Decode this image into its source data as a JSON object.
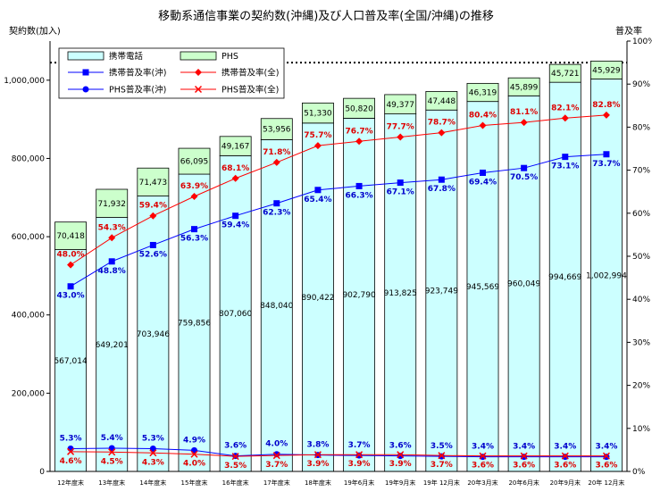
{
  "chart_data": {
    "type": "bar",
    "title": "移動系通信事業の契約数(沖縄)及び人口普及率(全国/沖縄)の推移",
    "ylabel": "契約数(加入)",
    "y2label": "普及率",
    "ylim": [
      0,
      1100000
    ],
    "y2lim": [
      0,
      100
    ],
    "yticks": [
      "0",
      "200,000",
      "400,000",
      "600,000",
      "800,000",
      "1,000,000"
    ],
    "y2ticks": [
      "0%",
      "10%",
      "20%",
      "30%",
      "40%",
      "50%",
      "60%",
      "70%",
      "80%",
      "90%",
      "100%"
    ],
    "categories": [
      "12年度末",
      "13年度末",
      "14年度末",
      "15年度末",
      "16年度末",
      "17年度末",
      "18年度末",
      "19年6月末",
      "19年9月末",
      "19年 12月末",
      "20年3月末",
      "20年6月末",
      "20年9月末",
      "20年 12月末"
    ],
    "grid": false,
    "stacked_bars": [
      {
        "name": "携帯電話",
        "color": "#ccffff",
        "values": [
          567014,
          649201,
          703946,
          759856,
          807060,
          848040,
          890422,
          902790,
          913825,
          923749,
          945569,
          960049,
          994669,
          1002994
        ],
        "labels": [
          "567,014",
          "649,201",
          "703,946",
          "759,856",
          "807,060",
          "848,040",
          "890,422",
          "902,790",
          "913,825",
          "923,749",
          "945,569",
          "960,049",
          "994,669",
          "1,002,994"
        ]
      },
      {
        "name": "PHS",
        "color": "#ccffcc",
        "values": [
          70418,
          71932,
          71473,
          66095,
          49167,
          53956,
          51330,
          50820,
          49377,
          47448,
          46319,
          45899,
          45721,
          45929
        ],
        "labels": [
          "70,418",
          "71,932",
          "71,473",
          "66,095",
          "49,167",
          "53,956",
          "51,330",
          "50,820",
          "49,377",
          "47,448",
          "46,319",
          "45,899",
          "45,721",
          "45,929"
        ]
      }
    ],
    "lines": [
      {
        "name": "携帯普及率(沖)",
        "color": "#0000ff",
        "marker": "square",
        "values": [
          43.0,
          48.8,
          52.6,
          56.3,
          59.4,
          62.3,
          65.4,
          66.3,
          67.1,
          67.8,
          69.4,
          70.5,
          73.1,
          73.7
        ],
        "labels": [
          "43.0%",
          "48.8%",
          "52.6%",
          "56.3%",
          "59.4%",
          "62.3%",
          "65.4%",
          "66.3%",
          "67.1%",
          "67.8%",
          "69.4%",
          "70.5%",
          "73.1%",
          "73.7%"
        ]
      },
      {
        "name": "携帯普及率(全)",
        "color": "#ff0000",
        "marker": "diamond",
        "values": [
          48.0,
          54.3,
          59.4,
          63.9,
          68.1,
          71.8,
          75.7,
          76.7,
          77.7,
          78.7,
          80.4,
          81.1,
          82.1,
          82.8
        ],
        "labels": [
          "48.0%",
          "54.3%",
          "59.4%",
          "63.9%",
          "68.1%",
          "71.8%",
          "75.7%",
          "76.7%",
          "77.7%",
          "78.7%",
          "80.4%",
          "81.1%",
          "82.1%",
          "82.8%"
        ]
      },
      {
        "name": "PHS普及率(沖)",
        "color": "#0000ff",
        "marker": "circle",
        "values": [
          5.3,
          5.4,
          5.3,
          4.9,
          3.6,
          4.0,
          3.8,
          3.7,
          3.6,
          3.5,
          3.4,
          3.4,
          3.4,
          3.4
        ],
        "labels": [
          "5.3%",
          "5.4%",
          "5.3%",
          "4.9%",
          "3.6%",
          "4.0%",
          "3.8%",
          "3.7%",
          "3.6%",
          "3.5%",
          "3.4%",
          "3.4%",
          "3.4%",
          "3.4%"
        ]
      },
      {
        "name": "PHS普及率(全)",
        "color": "#ff0000",
        "marker": "x",
        "values": [
          4.6,
          4.5,
          4.3,
          4.0,
          3.5,
          3.7,
          3.9,
          3.9,
          3.9,
          3.7,
          3.6,
          3.6,
          3.6,
          3.6
        ],
        "labels": [
          "4.6%",
          "4.5%",
          "4.3%",
          "4.0%",
          "3.5%",
          "3.7%",
          "3.9%",
          "3.9%",
          "3.9%",
          "3.7%",
          "3.6%",
          "3.6%",
          "3.6%",
          "3.6%"
        ]
      }
    ],
    "reference_line": {
      "value_pct": 95,
      "style": "dotted"
    },
    "legend": "top-left"
  }
}
